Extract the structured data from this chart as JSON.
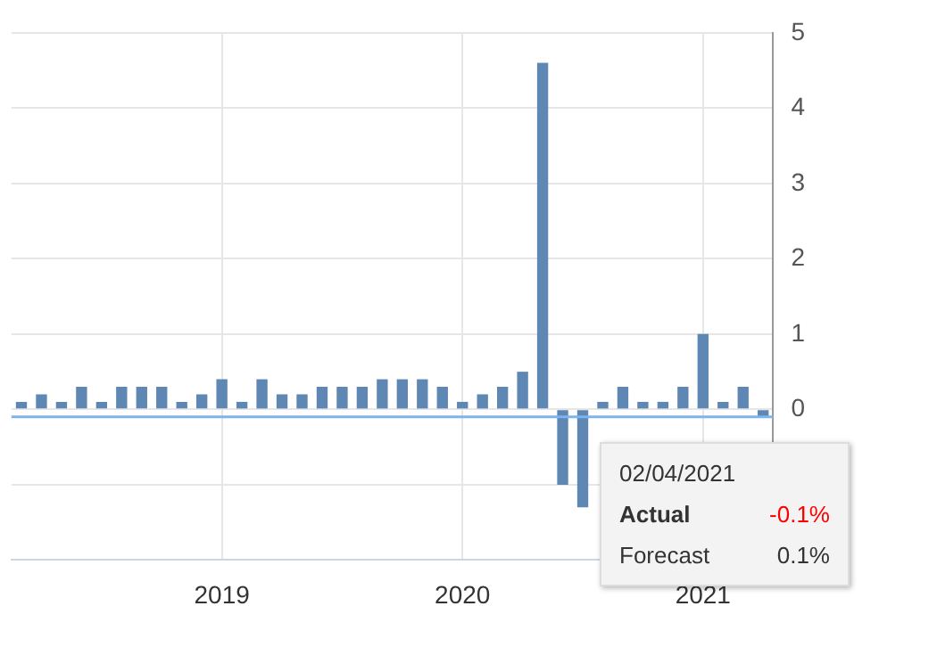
{
  "chart_data": {
    "type": "bar",
    "categories": [
      null,
      null,
      null,
      null,
      null,
      null,
      null,
      null,
      null,
      null,
      "2019",
      null,
      null,
      null,
      null,
      null,
      null,
      null,
      null,
      null,
      null,
      null,
      "2020",
      null,
      null,
      null,
      null,
      null,
      null,
      null,
      null,
      null,
      null,
      null,
      "2021",
      null,
      null,
      null
    ],
    "values": [
      0.1,
      0.2,
      0.1,
      0.3,
      0.1,
      0.3,
      0.3,
      0.3,
      0.1,
      0.2,
      0.4,
      0.1,
      0.4,
      0.2,
      0.2,
      0.3,
      0.3,
      0.3,
      0.4,
      0.4,
      0.4,
      0.3,
      0.1,
      0.2,
      0.3,
      0.5,
      4.6,
      -1.0,
      -1.3,
      0.1,
      0.3,
      0.1,
      0.1,
      0.3,
      1.0,
      0.1,
      0.3,
      -0.1
    ],
    "color": "#5f87b4",
    "ylim": [
      -2,
      5
    ],
    "yticks": [
      {
        "value": -2,
        "label": null
      },
      {
        "value": -1,
        "label": null
      },
      0,
      1,
      2,
      3,
      4,
      5
    ],
    "ref_lines": [
      {
        "axis": "y",
        "value": -0.1,
        "color": "#7cb5ec"
      }
    ],
    "annotations": [
      "02/04/2021",
      "Actual",
      "-0.1%",
      "Forecast",
      "0.1%"
    ],
    "grid": true,
    "legend": false
  }
}
